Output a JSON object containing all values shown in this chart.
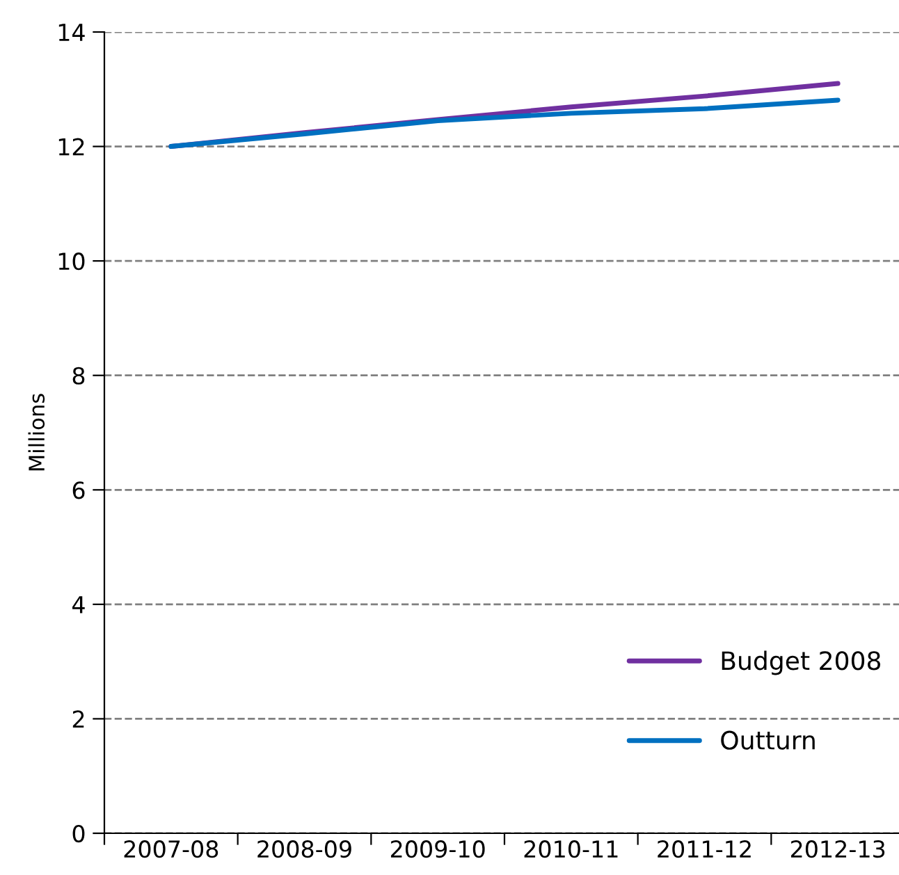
{
  "chart_data": {
    "type": "line",
    "ylabel": "Millions",
    "categories": [
      "2007-08",
      "2008-09",
      "2009-10",
      "2010-11",
      "2011-12",
      "2012-13"
    ],
    "series": [
      {
        "name": "Budget 2008",
        "color": "#7030a0",
        "values": [
          12.0,
          12.24,
          12.47,
          12.69,
          12.88,
          13.1
        ]
      },
      {
        "name": "Outturn",
        "color": "#0070c0",
        "values": [
          12.0,
          12.22,
          12.45,
          12.58,
          12.66,
          12.81
        ]
      }
    ],
    "ylim": [
      0,
      14
    ],
    "yticks": [
      0,
      2,
      4,
      6,
      8,
      10,
      12,
      14
    ],
    "grid": "y",
    "legend": "bottom right",
    "line_style": "solid"
  }
}
